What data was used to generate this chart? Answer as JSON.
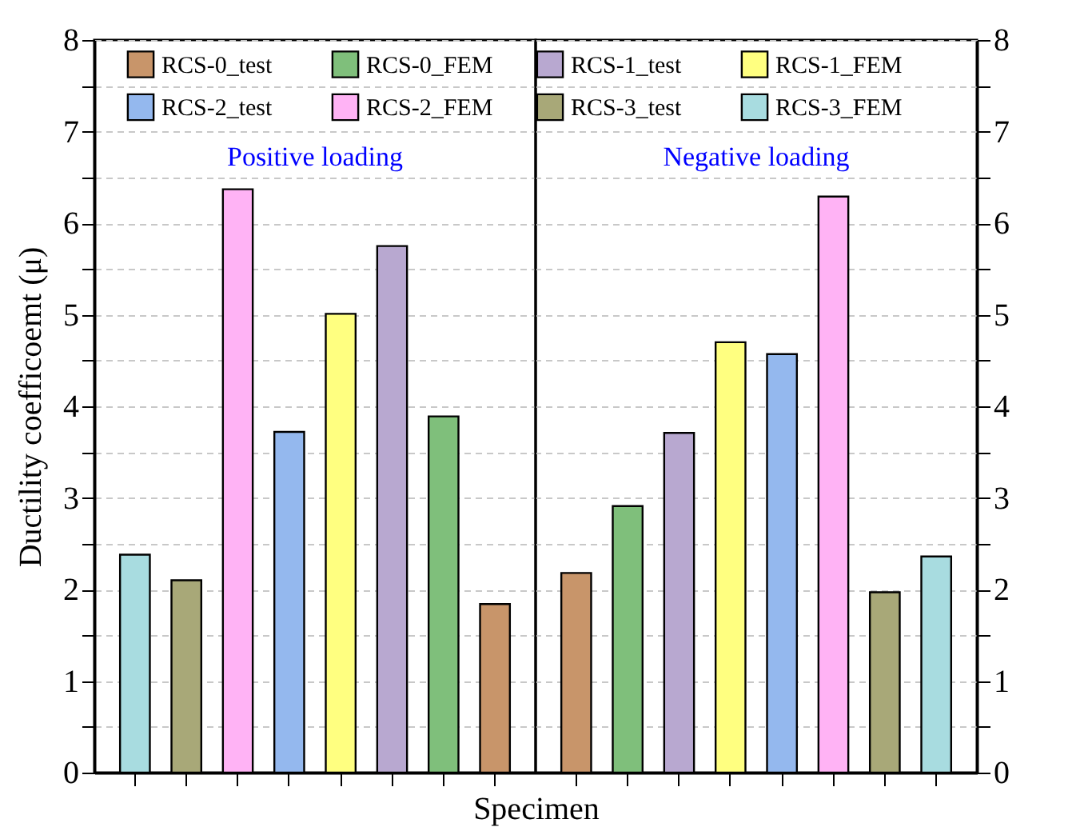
{
  "chart_data": [
    {
      "type": "bar",
      "xlabel": "Specimen",
      "ylabel": "Ductility coefficoemt (μ)",
      "annotations": [
        "Positive loading"
      ],
      "categories": [
        null,
        null,
        null,
        null,
        null,
        null,
        null,
        null
      ],
      "ylim": [
        0,
        8
      ],
      "yticks": [
        0,
        {
          "value": 0.5,
          "label": null
        },
        1,
        {
          "value": 1.5,
          "label": null
        },
        2,
        {
          "value": 2.5,
          "label": null
        },
        3,
        {
          "value": 3.5,
          "label": null
        },
        4,
        {
          "value": 4.5,
          "label": null
        },
        5,
        {
          "value": 5.5,
          "label": null
        },
        6,
        {
          "value": 6.5,
          "label": null
        },
        7,
        {
          "value": 7.5,
          "label": null
        },
        8
      ],
      "tick_labels": "y",
      "grid": "y",
      "legend": "top",
      "series": [
        {
          "name": "RCS-0_test",
          "color": "#c8956a",
          "values": [
            null,
            null,
            null,
            null,
            null,
            null,
            null,
            1.84
          ]
        },
        {
          "name": "RCS-0_FEM",
          "color": "#7fbf7b",
          "values": [
            null,
            null,
            null,
            null,
            null,
            null,
            3.89,
            null
          ]
        },
        {
          "name": "RCS-1_test",
          "color": "#b8a8d0",
          "values": [
            null,
            null,
            null,
            null,
            null,
            5.75,
            null,
            null
          ]
        },
        {
          "name": "RCS-1_FEM",
          "color": "#ffff80",
          "values": [
            null,
            null,
            null,
            null,
            5.01,
            null,
            null,
            null
          ]
        },
        {
          "name": "RCS-2_test",
          "color": "#94b8ee",
          "values": [
            null,
            null,
            null,
            3.72,
            null,
            null,
            null,
            null
          ]
        },
        {
          "name": "RCS-2_FEM",
          "color": "#ffb3f5",
          "values": [
            null,
            null,
            6.37,
            null,
            null,
            null,
            null,
            null
          ]
        },
        {
          "name": "RCS-3_test",
          "color": "#a8a878",
          "values": [
            null,
            2.1,
            null,
            null,
            null,
            null,
            null,
            null
          ]
        },
        {
          "name": "RCS-3_FEM",
          "color": "#a8dce0",
          "values": [
            2.38,
            null,
            null,
            null,
            null,
            null,
            null,
            null
          ]
        }
      ]
    },
    {
      "type": "bar",
      "annotations": [
        "Negative loading"
      ],
      "categories": [
        null,
        null,
        null,
        null,
        null,
        null,
        null,
        null
      ],
      "ylim": [
        0,
        8
      ],
      "yticks": [
        0,
        {
          "value": 0.5,
          "label": null
        },
        1,
        {
          "value": 1.5,
          "label": null
        },
        2,
        {
          "value": 2.5,
          "label": null
        },
        3,
        {
          "value": 3.5,
          "label": null
        },
        4,
        {
          "value": 4.5,
          "label": null
        },
        5,
        {
          "value": 5.5,
          "label": null
        },
        6,
        {
          "value": 6.5,
          "label": null
        },
        7,
        {
          "value": 7.5,
          "label": null
        },
        8
      ],
      "tick_labels": "y",
      "grid": "y",
      "legend": "top",
      "series": [
        {
          "name": "RCS-0_test",
          "color": "#c8956a",
          "values": [
            2.18,
            null,
            null,
            null,
            null,
            null,
            null,
            null
          ]
        },
        {
          "name": "RCS-0_FEM",
          "color": "#7fbf7b",
          "values": [
            null,
            2.91,
            null,
            null,
            null,
            null,
            null,
            null
          ]
        },
        {
          "name": "RCS-1_test",
          "color": "#b8a8d0",
          "values": [
            null,
            null,
            3.71,
            null,
            null,
            null,
            null,
            null
          ]
        },
        {
          "name": "RCS-1_FEM",
          "color": "#ffff80",
          "values": [
            null,
            null,
            null,
            4.7,
            null,
            null,
            null,
            null
          ]
        },
        {
          "name": "RCS-2_test",
          "color": "#94b8ee",
          "values": [
            null,
            null,
            null,
            null,
            4.57,
            null,
            null,
            null
          ]
        },
        {
          "name": "RCS-2_FEM",
          "color": "#ffb3f5",
          "values": [
            null,
            null,
            null,
            null,
            null,
            6.29,
            null,
            null
          ]
        },
        {
          "name": "RCS-3_test",
          "color": "#a8a878",
          "values": [
            null,
            null,
            null,
            null,
            null,
            null,
            1.97,
            null
          ]
        },
        {
          "name": "RCS-3_FEM",
          "color": "#a8dce0",
          "values": [
            null,
            null,
            null,
            null,
            null,
            null,
            null,
            2.36
          ]
        }
      ]
    }
  ]
}
